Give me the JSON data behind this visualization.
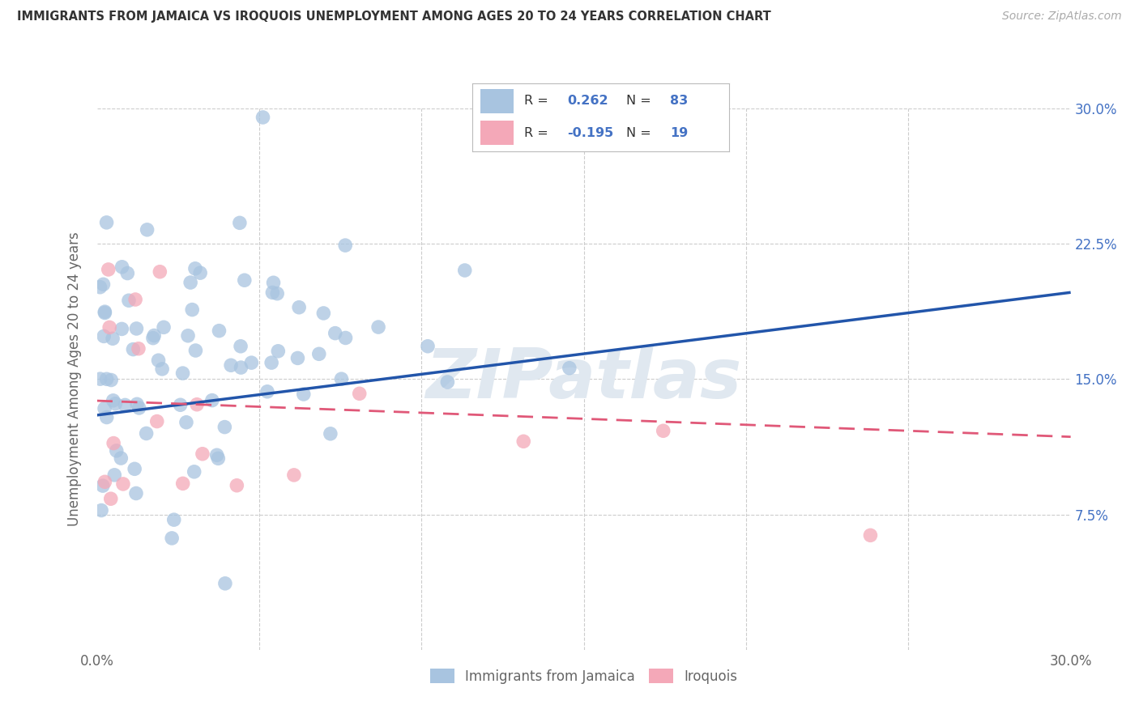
{
  "title": "IMMIGRANTS FROM JAMAICA VS IROQUOIS UNEMPLOYMENT AMONG AGES 20 TO 24 YEARS CORRELATION CHART",
  "source": "Source: ZipAtlas.com",
  "ylabel": "Unemployment Among Ages 20 to 24 years",
  "xmin": 0.0,
  "xmax": 0.3,
  "ymin": 0.0,
  "ymax": 0.3,
  "r_blue": 0.262,
  "n_blue": 83,
  "r_pink": -0.195,
  "n_pink": 19,
  "blue_color": "#a8c4e0",
  "pink_color": "#f4a8b8",
  "blue_line_color": "#2255aa",
  "pink_line_color": "#e05878",
  "grid_color": "#cccccc",
  "title_color": "#333333",
  "source_color": "#aaaaaa",
  "tick_color_y": "#4472c4",
  "tick_color_x": "#666666",
  "ylabel_color": "#666666",
  "watermark_text": "ZIPatlas",
  "watermark_color": "#e0e8f0",
  "legend_bottom_labels": [
    "Immigrants from Jamaica",
    "Iroquois"
  ],
  "legend_val_color": "#4472c4",
  "legend_text_color": "#333333",
  "blue_line_y0": 0.13,
  "blue_line_y1": 0.198,
  "pink_line_y0": 0.138,
  "pink_line_y1": 0.118
}
